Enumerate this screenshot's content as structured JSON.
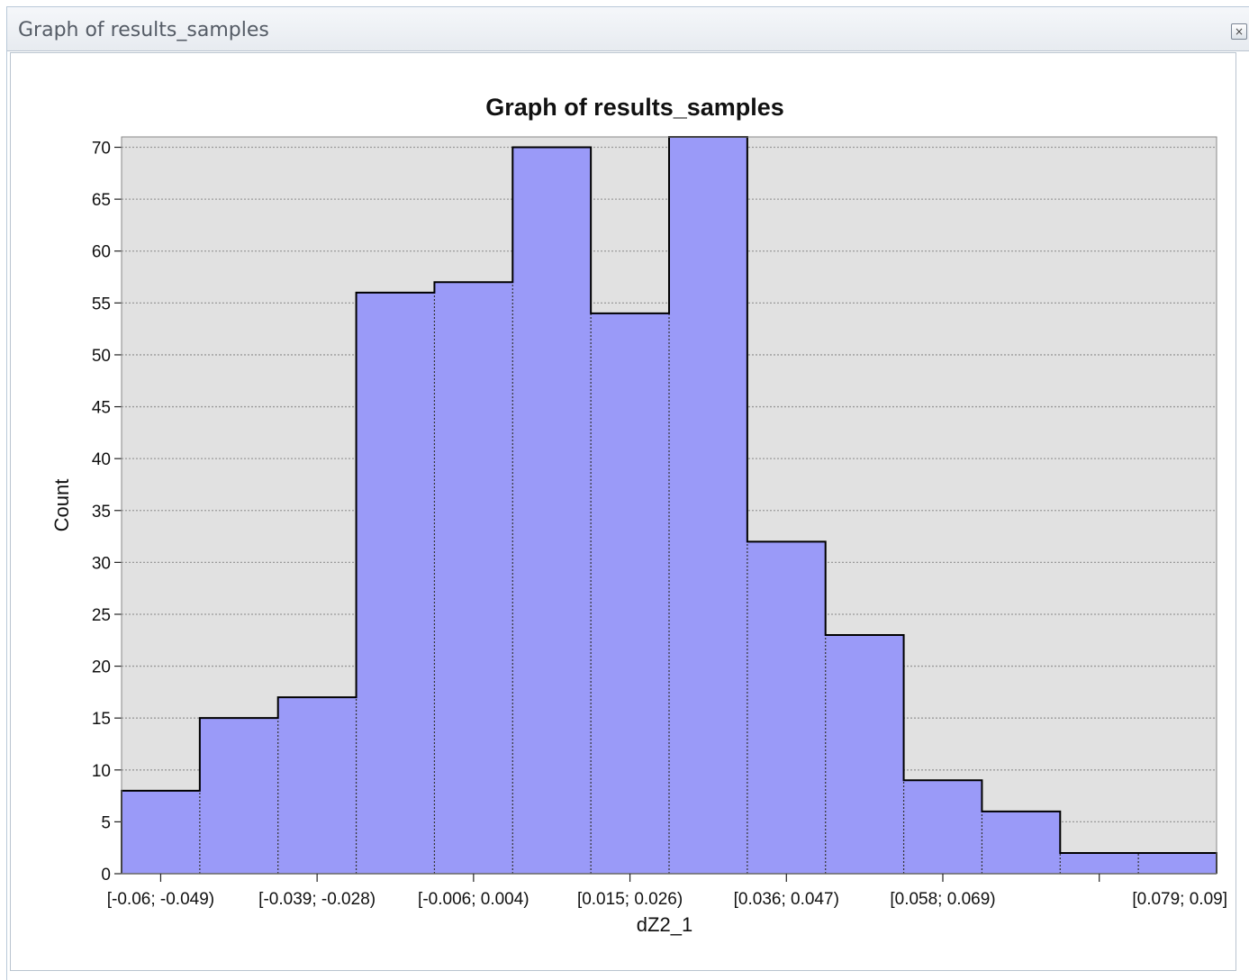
{
  "window": {
    "title": "Graph of results_samples",
    "close_icon": "close-icon"
  },
  "colors": {
    "bar_fill": "#9a9af8",
    "bar_stroke": "#000000",
    "plot_background": "#e1e1e1",
    "grid": "#9a9a9a"
  },
  "chart_data": {
    "type": "bar",
    "title": "Graph of results_samples",
    "xlabel": "dZ2_1",
    "ylabel": "Count",
    "ylim": [
      0,
      71
    ],
    "yticks": [
      0,
      5,
      10,
      15,
      20,
      25,
      30,
      35,
      40,
      45,
      50,
      55,
      60,
      65,
      70
    ],
    "grid": true,
    "values": [
      8,
      15,
      17,
      56,
      57,
      70,
      54,
      71,
      32,
      23,
      9,
      6,
      2,
      2
    ],
    "x_tick_labels": [
      "[-0.06; -0.049)",
      "[-0.039; -0.028)",
      "[-0.006; 0.004)",
      "[0.015; 0.026)",
      "[0.036; 0.047)",
      "[0.058; 0.069)",
      "[0.079; 0.09]"
    ]
  }
}
